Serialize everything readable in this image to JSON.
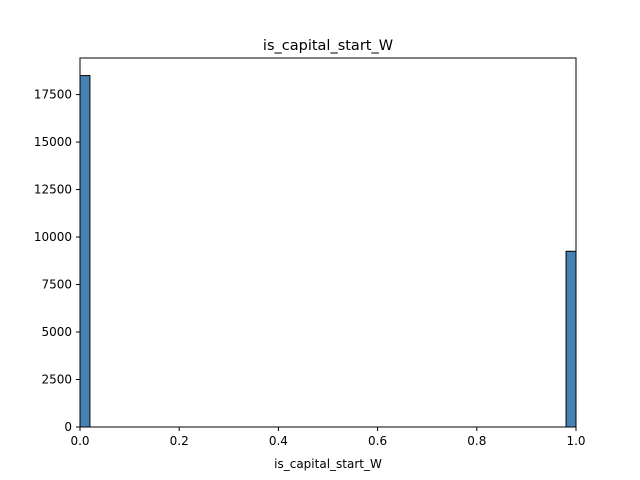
{
  "chart_data": {
    "type": "bar",
    "title": "is_capital_start_W",
    "xlabel": "is_capital_start_W",
    "ylabel": "",
    "xlim": [
      0,
      1
    ],
    "ylim": [
      0,
      19425
    ],
    "x_ticks": [
      0.0,
      0.2,
      0.4,
      0.6,
      0.8,
      1.0
    ],
    "x_tick_labels": [
      "0.0",
      "0.2",
      "0.4",
      "0.6",
      "0.8",
      "1.0"
    ],
    "y_ticks": [
      0,
      2500,
      5000,
      7500,
      10000,
      12500,
      15000,
      17500
    ],
    "y_tick_labels": [
      "0",
      "2500",
      "5000",
      "7500",
      "10000",
      "12500",
      "15000",
      "17500"
    ],
    "bins": [
      {
        "x0": 0.0,
        "x1": 0.02,
        "value": 18500
      },
      {
        "x0": 0.98,
        "x1": 1.0,
        "value": 9250
      }
    ],
    "grid": false,
    "legend": "none"
  },
  "colors": {
    "bar_fill": "#4682b4",
    "bar_edge": "#000000",
    "axis": "#000000",
    "background": "#ffffff"
  }
}
